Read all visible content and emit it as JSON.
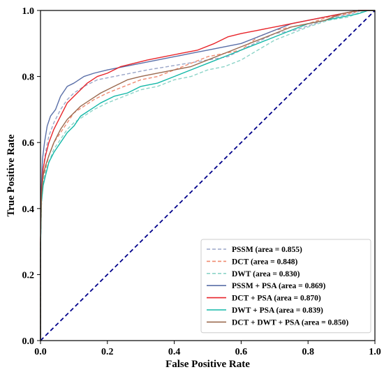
{
  "chart_data": {
    "type": "line",
    "title": "",
    "xlabel": "False Positive Rate",
    "ylabel": "True Positive Rate",
    "xlim": [
      0.0,
      1.0
    ],
    "ylim": [
      0.0,
      1.0
    ],
    "x_ticks": [
      "0.0",
      "0.2",
      "0.4",
      "0.6",
      "0.8",
      "1.0"
    ],
    "y_ticks": [
      "0.0",
      "0.2",
      "0.4",
      "0.6",
      "0.8",
      "1.0"
    ],
    "x_tick_values": [
      0,
      0.2,
      0.4,
      0.6,
      0.8,
      1.0
    ],
    "y_tick_values": [
      0,
      0.2,
      0.4,
      0.6,
      0.8,
      1.0
    ],
    "grid": false,
    "legend_position": "lower-right",
    "chance_line": {
      "color": "#00008b",
      "style": "dashed",
      "points": [
        [
          0,
          0
        ],
        [
          1,
          1
        ]
      ]
    },
    "series": [
      {
        "name": "PSSM (area = 0.855)",
        "color": "#9aa6c8",
        "style": "dashed",
        "points": [
          [
            0,
            0
          ],
          [
            0,
            0.28
          ],
          [
            0.003,
            0.42
          ],
          [
            0.008,
            0.52
          ],
          [
            0.015,
            0.57
          ],
          [
            0.025,
            0.62
          ],
          [
            0.04,
            0.66
          ],
          [
            0.06,
            0.7
          ],
          [
            0.08,
            0.73
          ],
          [
            0.1,
            0.75
          ],
          [
            0.13,
            0.77
          ],
          [
            0.17,
            0.79
          ],
          [
            0.22,
            0.8
          ],
          [
            0.27,
            0.81
          ],
          [
            0.32,
            0.82
          ],
          [
            0.38,
            0.83
          ],
          [
            0.44,
            0.84
          ],
          [
            0.5,
            0.85
          ],
          [
            0.56,
            0.86
          ],
          [
            0.6,
            0.88
          ],
          [
            0.64,
            0.9
          ],
          [
            0.7,
            0.93
          ],
          [
            0.76,
            0.94
          ],
          [
            0.82,
            0.96
          ],
          [
            0.88,
            0.98
          ],
          [
            0.93,
            0.99
          ],
          [
            0.96,
            1.0
          ],
          [
            1,
            1
          ]
        ]
      },
      {
        "name": "DCT (area = 0.848)",
        "color": "#f08a70",
        "style": "dashed",
        "points": [
          [
            0,
            0
          ],
          [
            0,
            0.3
          ],
          [
            0.003,
            0.42
          ],
          [
            0.008,
            0.48
          ],
          [
            0.015,
            0.52
          ],
          [
            0.025,
            0.56
          ],
          [
            0.04,
            0.6
          ],
          [
            0.06,
            0.63
          ],
          [
            0.08,
            0.66
          ],
          [
            0.1,
            0.69
          ],
          [
            0.13,
            0.71
          ],
          [
            0.16,
            0.73
          ],
          [
            0.2,
            0.75
          ],
          [
            0.25,
            0.77
          ],
          [
            0.3,
            0.79
          ],
          [
            0.35,
            0.8
          ],
          [
            0.4,
            0.82
          ],
          [
            0.45,
            0.84
          ],
          [
            0.5,
            0.86
          ],
          [
            0.55,
            0.87
          ],
          [
            0.6,
            0.88
          ],
          [
            0.65,
            0.92
          ],
          [
            0.7,
            0.94
          ],
          [
            0.75,
            0.95
          ],
          [
            0.8,
            0.96
          ],
          [
            0.86,
            0.98
          ],
          [
            0.92,
            0.99
          ],
          [
            0.96,
            1.0
          ],
          [
            1,
            1
          ]
        ]
      },
      {
        "name": "DWT (area = 0.830)",
        "color": "#8cd4c8",
        "style": "dashed",
        "points": [
          [
            0,
            0
          ],
          [
            0,
            0.3
          ],
          [
            0.003,
            0.42
          ],
          [
            0.008,
            0.48
          ],
          [
            0.015,
            0.51
          ],
          [
            0.025,
            0.54
          ],
          [
            0.04,
            0.58
          ],
          [
            0.06,
            0.61
          ],
          [
            0.08,
            0.64
          ],
          [
            0.1,
            0.66
          ],
          [
            0.13,
            0.68
          ],
          [
            0.16,
            0.7
          ],
          [
            0.2,
            0.72
          ],
          [
            0.25,
            0.74
          ],
          [
            0.3,
            0.76
          ],
          [
            0.35,
            0.77
          ],
          [
            0.4,
            0.79
          ],
          [
            0.45,
            0.8
          ],
          [
            0.5,
            0.82
          ],
          [
            0.55,
            0.83
          ],
          [
            0.6,
            0.85
          ],
          [
            0.65,
            0.88
          ],
          [
            0.7,
            0.91
          ],
          [
            0.75,
            0.93
          ],
          [
            0.8,
            0.95
          ],
          [
            0.86,
            0.97
          ],
          [
            0.92,
            0.98
          ],
          [
            0.97,
            1.0
          ],
          [
            1,
            1
          ]
        ]
      },
      {
        "name": "PSSM + PSA (area = 0.869)",
        "color": "#5a6fa8",
        "style": "solid",
        "points": [
          [
            0,
            0
          ],
          [
            0,
            0.26
          ],
          [
            0.002,
            0.45
          ],
          [
            0.006,
            0.55
          ],
          [
            0.012,
            0.6
          ],
          [
            0.02,
            0.65
          ],
          [
            0.03,
            0.68
          ],
          [
            0.045,
            0.7
          ],
          [
            0.06,
            0.74
          ],
          [
            0.08,
            0.77
          ],
          [
            0.1,
            0.78
          ],
          [
            0.13,
            0.8
          ],
          [
            0.16,
            0.81
          ],
          [
            0.2,
            0.82
          ],
          [
            0.25,
            0.83
          ],
          [
            0.3,
            0.84
          ],
          [
            0.35,
            0.85
          ],
          [
            0.4,
            0.86
          ],
          [
            0.45,
            0.87
          ],
          [
            0.5,
            0.88
          ],
          [
            0.55,
            0.89
          ],
          [
            0.6,
            0.9
          ],
          [
            0.65,
            0.92
          ],
          [
            0.7,
            0.94
          ],
          [
            0.75,
            0.96
          ],
          [
            0.8,
            0.97
          ],
          [
            0.85,
            0.98
          ],
          [
            0.9,
            0.99
          ],
          [
            0.95,
            1.0
          ],
          [
            1,
            1
          ]
        ]
      },
      {
        "name": "DCT + PSA (area = 0.870)",
        "color": "#e8242a",
        "style": "solid",
        "points": [
          [
            0,
            0
          ],
          [
            0,
            0.3
          ],
          [
            0.003,
            0.45
          ],
          [
            0.008,
            0.52
          ],
          [
            0.015,
            0.56
          ],
          [
            0.025,
            0.6
          ],
          [
            0.04,
            0.64
          ],
          [
            0.06,
            0.68
          ],
          [
            0.08,
            0.72
          ],
          [
            0.1,
            0.74
          ],
          [
            0.12,
            0.76
          ],
          [
            0.14,
            0.78
          ],
          [
            0.17,
            0.8
          ],
          [
            0.2,
            0.81
          ],
          [
            0.24,
            0.83
          ],
          [
            0.28,
            0.84
          ],
          [
            0.32,
            0.85
          ],
          [
            0.37,
            0.86
          ],
          [
            0.42,
            0.87
          ],
          [
            0.47,
            0.88
          ],
          [
            0.52,
            0.9
          ],
          [
            0.56,
            0.92
          ],
          [
            0.6,
            0.93
          ],
          [
            0.65,
            0.94
          ],
          [
            0.7,
            0.95
          ],
          [
            0.75,
            0.96
          ],
          [
            0.8,
            0.97
          ],
          [
            0.85,
            0.98
          ],
          [
            0.9,
            0.99
          ],
          [
            0.95,
            1.0
          ],
          [
            1,
            1
          ]
        ]
      },
      {
        "name": "DWT + PSA (area = 0.839)",
        "color": "#13b8a8",
        "style": "solid",
        "points": [
          [
            0,
            0
          ],
          [
            0,
            0.28
          ],
          [
            0.003,
            0.42
          ],
          [
            0.008,
            0.47
          ],
          [
            0.015,
            0.5
          ],
          [
            0.025,
            0.54
          ],
          [
            0.04,
            0.57
          ],
          [
            0.06,
            0.6
          ],
          [
            0.08,
            0.63
          ],
          [
            0.1,
            0.65
          ],
          [
            0.12,
            0.68
          ],
          [
            0.15,
            0.7
          ],
          [
            0.18,
            0.72
          ],
          [
            0.22,
            0.74
          ],
          [
            0.26,
            0.75
          ],
          [
            0.3,
            0.77
          ],
          [
            0.35,
            0.78
          ],
          [
            0.4,
            0.8
          ],
          [
            0.45,
            0.82
          ],
          [
            0.5,
            0.84
          ],
          [
            0.55,
            0.86
          ],
          [
            0.6,
            0.88
          ],
          [
            0.65,
            0.9
          ],
          [
            0.7,
            0.92
          ],
          [
            0.75,
            0.94
          ],
          [
            0.8,
            0.96
          ],
          [
            0.85,
            0.97
          ],
          [
            0.9,
            0.98
          ],
          [
            0.95,
            0.99
          ],
          [
            0.98,
            1.0
          ],
          [
            1,
            1
          ]
        ]
      },
      {
        "name": "DCT + DWT + PSA (area = 0.850)",
        "color": "#9b6a4f",
        "style": "solid",
        "points": [
          [
            0,
            0
          ],
          [
            0,
            0.3
          ],
          [
            0.003,
            0.44
          ],
          [
            0.008,
            0.5
          ],
          [
            0.015,
            0.53
          ],
          [
            0.025,
            0.56
          ],
          [
            0.04,
            0.6
          ],
          [
            0.06,
            0.64
          ],
          [
            0.08,
            0.67
          ],
          [
            0.1,
            0.69
          ],
          [
            0.12,
            0.71
          ],
          [
            0.15,
            0.73
          ],
          [
            0.18,
            0.75
          ],
          [
            0.22,
            0.77
          ],
          [
            0.26,
            0.79
          ],
          [
            0.3,
            0.8
          ],
          [
            0.35,
            0.81
          ],
          [
            0.4,
            0.82
          ],
          [
            0.45,
            0.83
          ],
          [
            0.5,
            0.85
          ],
          [
            0.55,
            0.87
          ],
          [
            0.6,
            0.89
          ],
          [
            0.65,
            0.91
          ],
          [
            0.7,
            0.93
          ],
          [
            0.75,
            0.95
          ],
          [
            0.8,
            0.96
          ],
          [
            0.85,
            0.97
          ],
          [
            0.9,
            0.99
          ],
          [
            0.95,
            1.0
          ],
          [
            1,
            1
          ]
        ]
      }
    ]
  }
}
